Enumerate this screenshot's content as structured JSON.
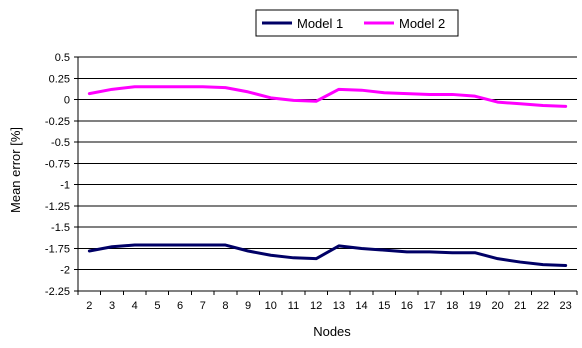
{
  "chart_data": {
    "type": "line",
    "title": "",
    "xlabel": "Nodes",
    "ylabel": "Mean error [%]",
    "x": [
      2,
      3,
      4,
      5,
      6,
      7,
      8,
      9,
      10,
      11,
      12,
      13,
      14,
      15,
      16,
      17,
      18,
      19,
      20,
      21,
      22,
      23
    ],
    "ylim": [
      -2.25,
      0.5
    ],
    "yticks": [
      0.5,
      0.25,
      0,
      -0.25,
      -0.5,
      -0.75,
      -1,
      -1.25,
      -1.5,
      -1.75,
      -2,
      -2.25
    ],
    "ytick_labels": [
      "0.5",
      "0.25",
      "0",
      "-0.25",
      "-0.5",
      "-0.75",
      "-1",
      "-1.25",
      "-1.5",
      "-1.75",
      "-2",
      "-2.25"
    ],
    "grid": true,
    "legend_position": "top",
    "series": [
      {
        "name": "Model 1",
        "color": "#000066",
        "values": [
          -1.78,
          -1.73,
          -1.71,
          -1.71,
          -1.71,
          -1.71,
          -1.71,
          -1.78,
          -1.83,
          -1.86,
          -1.87,
          -1.72,
          -1.75,
          -1.77,
          -1.79,
          -1.79,
          -1.8,
          -1.8,
          -1.87,
          -1.91,
          -1.94,
          -1.95
        ]
      },
      {
        "name": "Model 2",
        "color": "#ff00ff",
        "values": [
          0.07,
          0.12,
          0.15,
          0.15,
          0.15,
          0.15,
          0.14,
          0.09,
          0.02,
          -0.01,
          -0.02,
          0.12,
          0.11,
          0.08,
          0.07,
          0.06,
          0.06,
          0.04,
          -0.03,
          -0.05,
          -0.07,
          -0.08
        ]
      }
    ]
  }
}
